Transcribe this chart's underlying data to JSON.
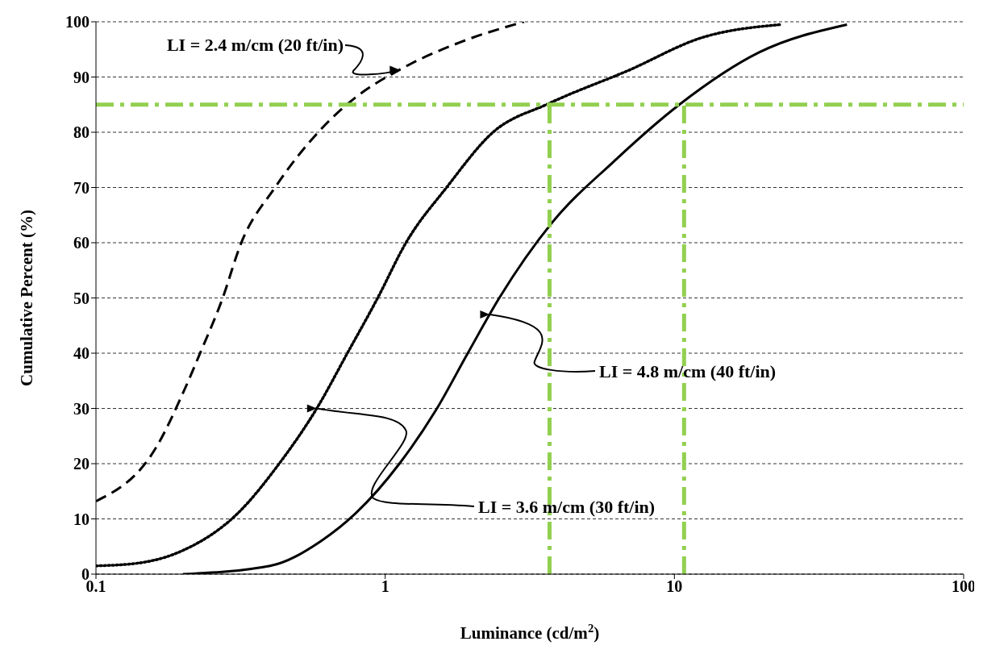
{
  "chart_data": {
    "type": "line",
    "xlabel": "Luminance (cd/m$^{2}$)",
    "ylabel": "Cumulative Percent (%)",
    "log": "x",
    "xlim": [
      0.1,
      100
    ],
    "xticks": [
      0.1,
      1,
      10,
      100
    ],
    "ylim": [
      0,
      100
    ],
    "yticks": [
      0,
      10,
      20,
      30,
      40,
      50,
      60,
      70,
      80,
      90,
      100
    ],
    "grid": "y",
    "marker": "none",
    "legend": false,
    "series": [
      {
        "color": "#000000",
        "line_style": "dashed",
        "x": [
          0.1,
          0.163,
          0.198,
          0.23,
          0.273,
          0.317,
          0.416,
          0.589,
          0.79,
          1.12,
          1.84,
          3.02
        ],
        "values": [
          13.2,
          23.3,
          32.3,
          40.2,
          49.7,
          59.8,
          70,
          80.1,
          86.3,
          91.3,
          96.4,
          100
        ]
      },
      {
        "color": "#000000",
        "line_style": "dotted",
        "x": [
          0.1,
          0.14,
          0.198,
          0.309,
          0.43,
          0.58,
          0.74,
          0.942,
          1.18,
          1.63,
          2.36,
          3.68,
          6.94,
          12.4,
          23.4
        ],
        "values": [
          1.5,
          2,
          4.2,
          11,
          20,
          30,
          40,
          50,
          60,
          70,
          80,
          85.2,
          91.2,
          97.1,
          99.5
        ]
      },
      {
        "color": "#000000",
        "line_style": "solid",
        "x": [
          0.2,
          0.4,
          0.6,
          0.79,
          1.12,
          1.51,
          1.93,
          2.48,
          3.77,
          6.17,
          10.4,
          19.7,
          39.5
        ],
        "values": [
          0,
          1.5,
          6,
          11,
          20,
          30,
          40,
          50,
          63.6,
          74.7,
          85,
          94.5,
          99.5
        ]
      }
    ],
    "ref_lines": [
      {
        "axis": "y",
        "value": 85,
        "color": "#92d050",
        "line_style": "dashdot"
      },
      {
        "axis": "x",
        "value": 3.7,
        "color": "#92d050",
        "line_style": "dashdot"
      },
      {
        "axis": "x",
        "value": 10.8,
        "color": "#92d050",
        "line_style": "dashdot"
      }
    ],
    "annotations": [
      {
        "text": "LI = 2.4 m/cm (20 ft/in)",
        "x": 1.12,
        "y": 91.3
      },
      {
        "text": "LI = 3.6 m/cm (30 ft/in)",
        "x": 0.58,
        "y": 30
      },
      {
        "text": "LI = 4.8 m/cm (40 ft/in)",
        "x": 2.3,
        "y": 47
      }
    ]
  }
}
